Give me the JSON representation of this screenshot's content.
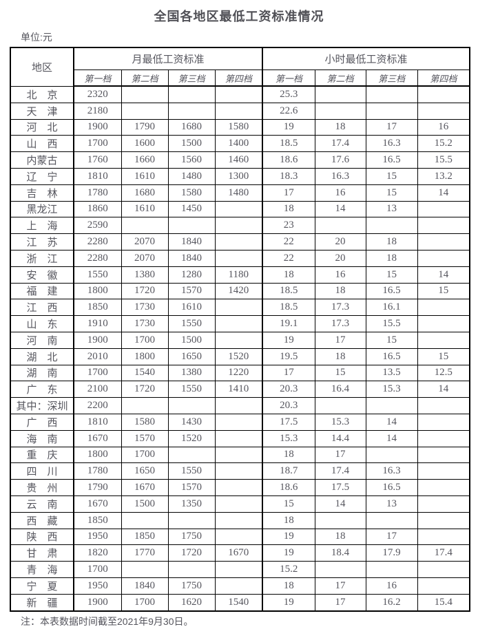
{
  "title": "全国各地区最低工资标准情况",
  "unit_label": "单位:元",
  "note": "注：本表数据时间截至2021年9月30日。",
  "colors": {
    "border": "#000000",
    "text": "#54545c",
    "title": "#505056"
  },
  "table": {
    "region_header": "地区",
    "monthly_header": "月最低工资标准",
    "hourly_header": "小时最低工资标准",
    "tier_headers": [
      "第一档",
      "第二档",
      "第三档",
      "第四档"
    ],
    "rows": [
      {
        "region": "北　京",
        "monthly": [
          "2320",
          "",
          "",
          ""
        ],
        "hourly": [
          "25.3",
          "",
          "",
          ""
        ]
      },
      {
        "region": "天　津",
        "monthly": [
          "2180",
          "",
          "",
          ""
        ],
        "hourly": [
          "22.6",
          "",
          "",
          ""
        ]
      },
      {
        "region": "河　北",
        "monthly": [
          "1900",
          "1790",
          "1680",
          "1580"
        ],
        "hourly": [
          "19",
          "18",
          "17",
          "16"
        ]
      },
      {
        "region": "山　西",
        "monthly": [
          "1700",
          "1600",
          "1500",
          "1400"
        ],
        "hourly": [
          "18.5",
          "17.4",
          "16.3",
          "15.2"
        ]
      },
      {
        "region": "内蒙古",
        "monthly": [
          "1760",
          "1660",
          "1560",
          "1460"
        ],
        "hourly": [
          "18.6",
          "17.6",
          "16.5",
          "15.5"
        ]
      },
      {
        "region": "辽　宁",
        "monthly": [
          "1810",
          "1610",
          "1480",
          "1300"
        ],
        "hourly": [
          "18.3",
          "16.3",
          "15",
          "13.2"
        ]
      },
      {
        "region": "吉　林",
        "monthly": [
          "1780",
          "1680",
          "1580",
          "1480"
        ],
        "hourly": [
          "17",
          "16",
          "15",
          "14"
        ]
      },
      {
        "region": "黑龙江",
        "monthly": [
          "1860",
          "1610",
          "1450",
          ""
        ],
        "hourly": [
          "18",
          "14",
          "13",
          ""
        ]
      },
      {
        "region": "上　海",
        "monthly": [
          "2590",
          "",
          "",
          ""
        ],
        "hourly": [
          "23",
          "",
          "",
          ""
        ]
      },
      {
        "region": "江　苏",
        "monthly": [
          "2280",
          "2070",
          "1840",
          ""
        ],
        "hourly": [
          "22",
          "20",
          "18",
          ""
        ]
      },
      {
        "region": "浙　江",
        "monthly": [
          "2280",
          "2070",
          "1840",
          ""
        ],
        "hourly": [
          "22",
          "20",
          "18",
          ""
        ]
      },
      {
        "region": "安　徽",
        "monthly": [
          "1550",
          "1380",
          "1280",
          "1180"
        ],
        "hourly": [
          "18",
          "16",
          "15",
          "14"
        ]
      },
      {
        "region": "福　建",
        "monthly": [
          "1800",
          "1720",
          "1570",
          "1420"
        ],
        "hourly": [
          "18.5",
          "18",
          "16.5",
          "15"
        ]
      },
      {
        "region": "江　西",
        "monthly": [
          "1850",
          "1730",
          "1610",
          ""
        ],
        "hourly": [
          "18.5",
          "17.3",
          "16.1",
          ""
        ]
      },
      {
        "region": "山　东",
        "monthly": [
          "1910",
          "1730",
          "1550",
          ""
        ],
        "hourly": [
          "19.1",
          "17.3",
          "15.5",
          ""
        ]
      },
      {
        "region": "河　南",
        "monthly": [
          "1900",
          "1700",
          "1500",
          ""
        ],
        "hourly": [
          "19",
          "17",
          "15",
          ""
        ]
      },
      {
        "region": "湖　北",
        "monthly": [
          "2010",
          "1800",
          "1650",
          "1520"
        ],
        "hourly": [
          "19.5",
          "18",
          "16.5",
          "15"
        ]
      },
      {
        "region": "湖　南",
        "monthly": [
          "1700",
          "1540",
          "1380",
          "1220"
        ],
        "hourly": [
          "17",
          "15",
          "13.5",
          "12.5"
        ]
      },
      {
        "region": "广　东",
        "monthly": [
          "2100",
          "1720",
          "1550",
          "1410"
        ],
        "hourly": [
          "20.3",
          "16.4",
          "15.3",
          "14"
        ]
      },
      {
        "region": "其中：深圳",
        "monthly": [
          "2200",
          "",
          "",
          ""
        ],
        "hourly": [
          "20.3",
          "",
          "",
          ""
        ]
      },
      {
        "region": "广　西",
        "monthly": [
          "1810",
          "1580",
          "1430",
          ""
        ],
        "hourly": [
          "17.5",
          "15.3",
          "14",
          ""
        ]
      },
      {
        "region": "海　南",
        "monthly": [
          "1670",
          "1570",
          "1520",
          ""
        ],
        "hourly": [
          "15.3",
          "14.4",
          "14",
          ""
        ]
      },
      {
        "region": "重　庆",
        "monthly": [
          "1800",
          "1700",
          "",
          ""
        ],
        "hourly": [
          "18",
          "17",
          "",
          ""
        ]
      },
      {
        "region": "四　川",
        "monthly": [
          "1780",
          "1650",
          "1550",
          ""
        ],
        "hourly": [
          "18.7",
          "17.4",
          "16.3",
          ""
        ]
      },
      {
        "region": "贵　州",
        "monthly": [
          "1790",
          "1670",
          "1570",
          ""
        ],
        "hourly": [
          "18.6",
          "17.5",
          "16.5",
          ""
        ]
      },
      {
        "region": "云　南",
        "monthly": [
          "1670",
          "1500",
          "1350",
          ""
        ],
        "hourly": [
          "15",
          "14",
          "13",
          ""
        ]
      },
      {
        "region": "西　藏",
        "monthly": [
          "1850",
          "",
          "",
          ""
        ],
        "hourly": [
          "18",
          "",
          "",
          ""
        ]
      },
      {
        "region": "陕　西",
        "monthly": [
          "1950",
          "1850",
          "1750",
          ""
        ],
        "hourly": [
          "19",
          "18",
          "17",
          ""
        ]
      },
      {
        "region": "甘　肃",
        "monthly": [
          "1820",
          "1770",
          "1720",
          "1670"
        ],
        "hourly": [
          "19",
          "18.4",
          "17.9",
          "17.4"
        ]
      },
      {
        "region": "青　海",
        "monthly": [
          "1700",
          "",
          "",
          ""
        ],
        "hourly": [
          "15.2",
          "",
          "",
          ""
        ]
      },
      {
        "region": "宁　夏",
        "monthly": [
          "1950",
          "1840",
          "1750",
          ""
        ],
        "hourly": [
          "18",
          "17",
          "16",
          ""
        ]
      },
      {
        "region": "新　疆",
        "monthly": [
          "1900",
          "1700",
          "1620",
          "1540"
        ],
        "hourly": [
          "19",
          "17",
          "16.2",
          "15.4"
        ]
      }
    ]
  }
}
